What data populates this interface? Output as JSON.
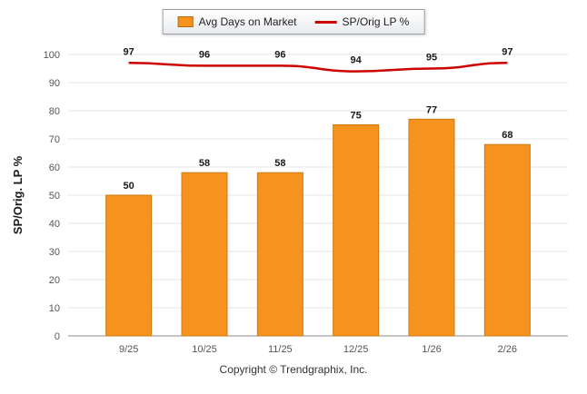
{
  "legend": {
    "items": [
      {
        "label": "Avg Days on Market",
        "type": "bar",
        "color": "#f6921e"
      },
      {
        "label": "SP/Orig LP %",
        "type": "line",
        "color": "#cc0000"
      }
    ]
  },
  "footer": "Copyright © Trendgraphix, Inc.",
  "chart_data": {
    "type": "bar",
    "subtype": "combo-bar-line",
    "categories": [
      "9/25",
      "10/25",
      "11/25",
      "12/25",
      "1/26",
      "2/26"
    ],
    "series": [
      {
        "name": "Avg Days on Market",
        "type": "bar",
        "color": "#f6921e",
        "values": [
          50,
          58,
          58,
          75,
          77,
          68
        ]
      },
      {
        "name": "SP/Orig LP %",
        "type": "line",
        "color": "#cc0000",
        "values": [
          97,
          96,
          96,
          94,
          95,
          97
        ]
      }
    ],
    "title": "",
    "xlabel": "",
    "ylabel": "SP/Orig. LP %",
    "ylim": [
      0,
      100
    ],
    "ytick_step": 10,
    "grid": true,
    "legend_position": "top"
  }
}
